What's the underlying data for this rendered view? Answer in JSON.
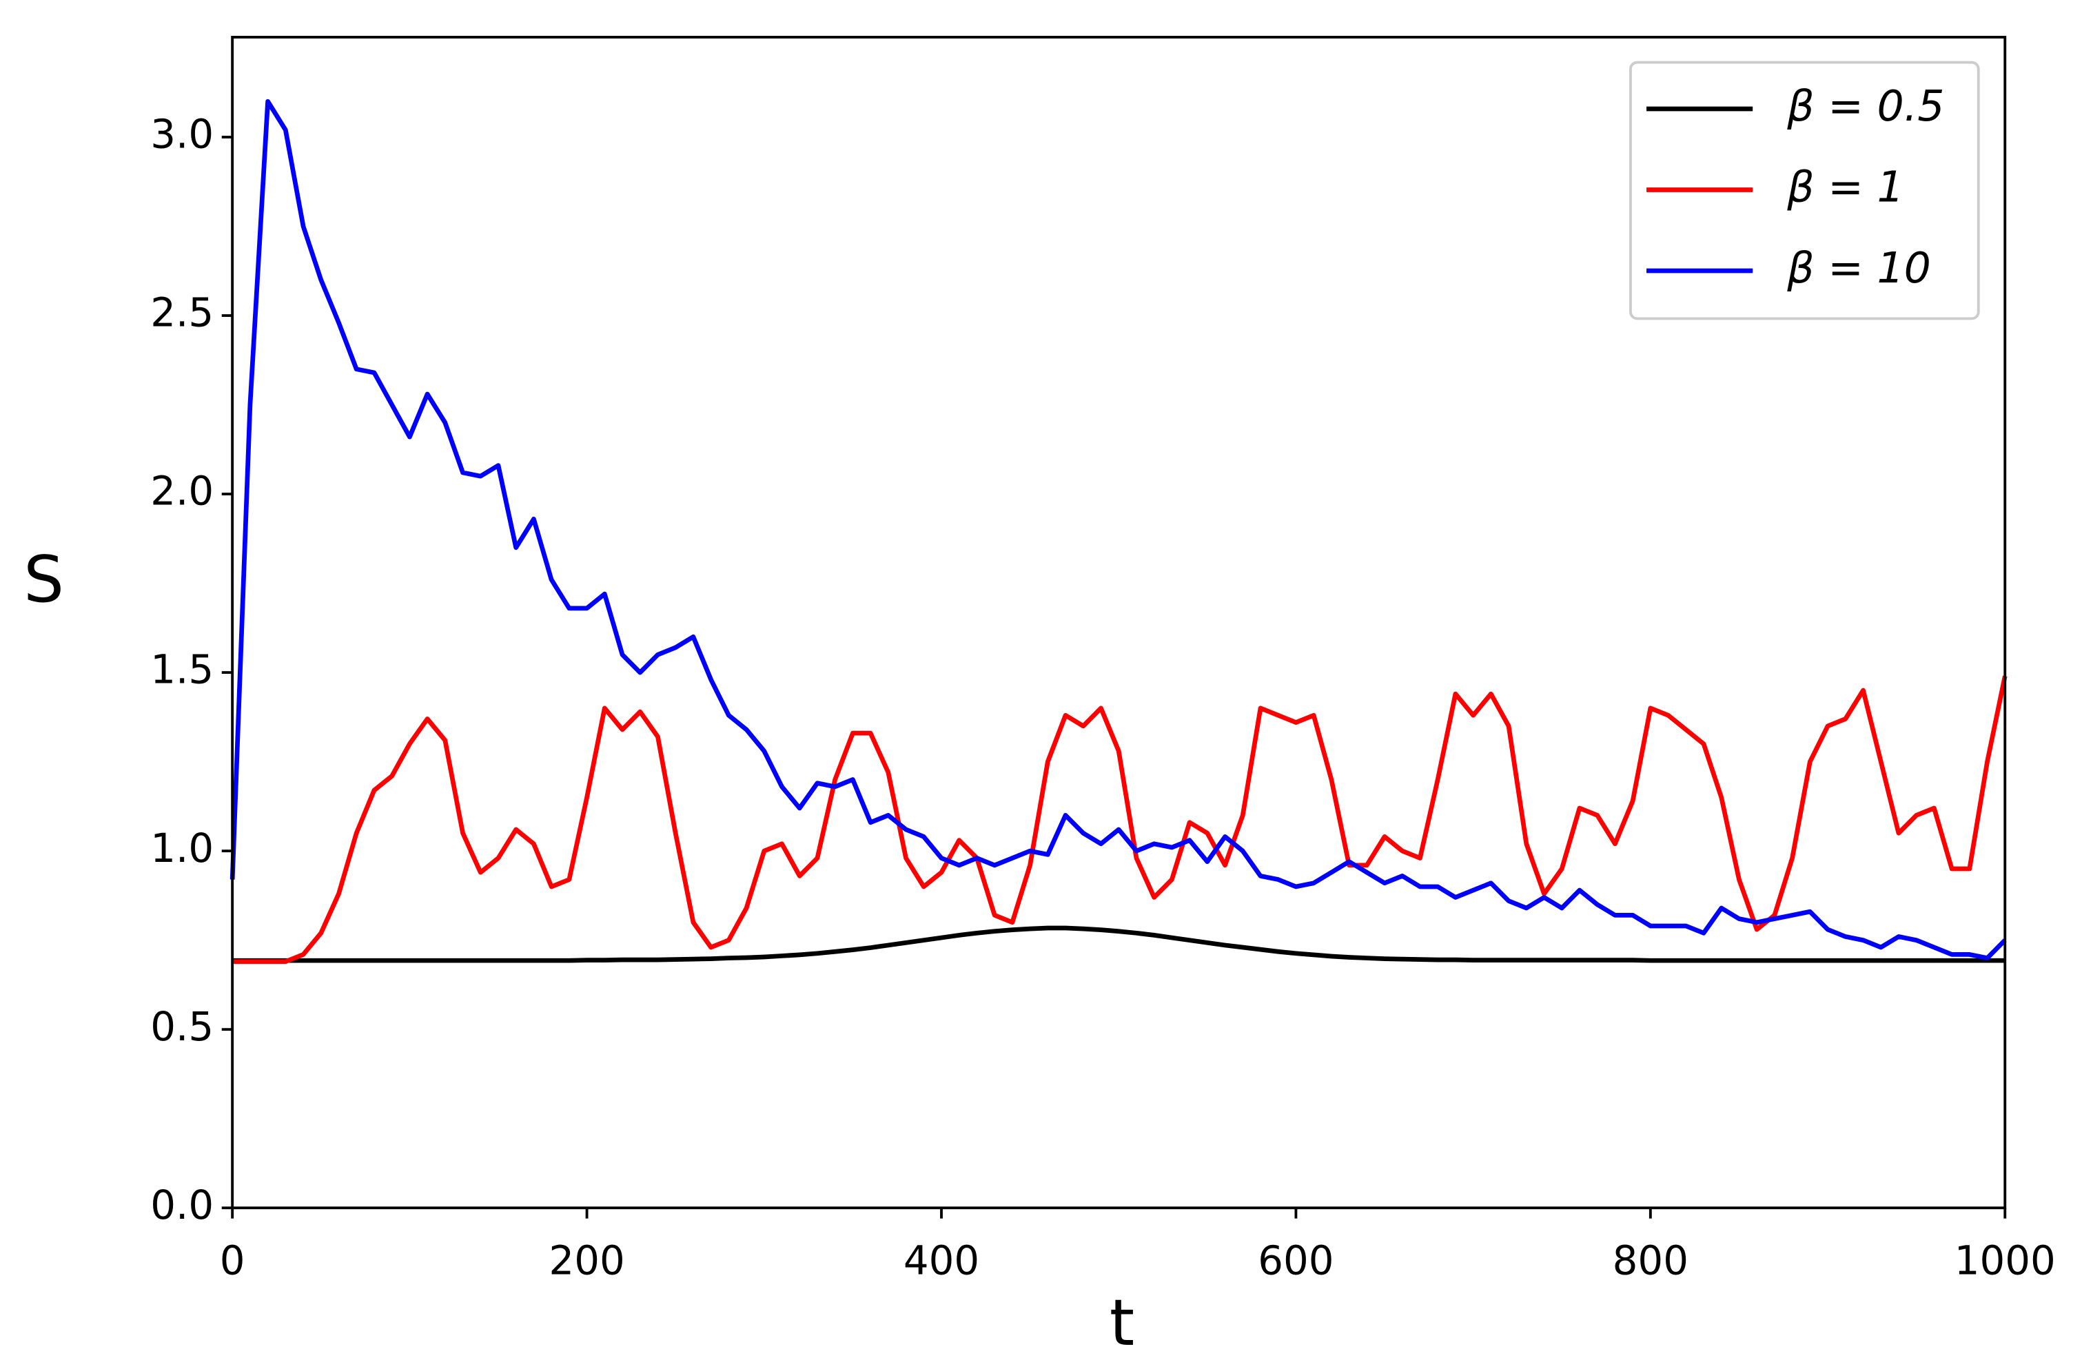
{
  "chart_data": {
    "type": "line",
    "xlabel": "t",
    "ylabel": "S",
    "x": [
      0,
      10,
      20,
      30,
      40,
      50,
      60,
      70,
      80,
      90,
      100,
      110,
      120,
      130,
      140,
      150,
      160,
      170,
      180,
      190,
      200,
      210,
      220,
      230,
      240,
      250,
      260,
      270,
      280,
      290,
      300,
      310,
      320,
      330,
      340,
      350,
      360,
      370,
      380,
      390,
      400,
      410,
      420,
      430,
      440,
      450,
      460,
      470,
      480,
      490,
      500,
      510,
      520,
      530,
      540,
      550,
      560,
      570,
      580,
      590,
      600,
      610,
      620,
      630,
      640,
      650,
      660,
      670,
      680,
      690,
      700,
      710,
      720,
      730,
      740,
      750,
      760,
      770,
      780,
      790,
      800,
      810,
      820,
      830,
      840,
      850,
      860,
      870,
      880,
      890,
      900,
      910,
      920,
      930,
      940,
      950,
      960,
      970,
      980,
      990,
      1000
    ],
    "series": [
      {
        "name": "β = 0.5",
        "color": "#000000",
        "values": [
          0.693,
          0.693,
          0.693,
          0.693,
          0.693,
          0.693,
          0.693,
          0.693,
          0.693,
          0.693,
          0.693,
          0.693,
          0.693,
          0.693,
          0.693,
          0.693,
          0.693,
          0.693,
          0.693,
          0.693,
          0.694,
          0.694,
          0.695,
          0.695,
          0.695,
          0.696,
          0.697,
          0.698,
          0.7,
          0.701,
          0.703,
          0.706,
          0.709,
          0.713,
          0.718,
          0.723,
          0.729,
          0.736,
          0.743,
          0.75,
          0.757,
          0.764,
          0.77,
          0.775,
          0.779,
          0.782,
          0.784,
          0.784,
          0.782,
          0.779,
          0.775,
          0.77,
          0.764,
          0.757,
          0.75,
          0.743,
          0.736,
          0.73,
          0.724,
          0.718,
          0.713,
          0.709,
          0.705,
          0.702,
          0.7,
          0.698,
          0.697,
          0.696,
          0.695,
          0.695,
          0.694,
          0.694,
          0.694,
          0.694,
          0.694,
          0.694,
          0.694,
          0.694,
          0.694,
          0.694,
          0.693,
          0.693,
          0.693,
          0.693,
          0.693,
          0.693,
          0.693,
          0.693,
          0.693,
          0.693,
          0.693,
          0.693,
          0.693,
          0.693,
          0.693,
          0.693,
          0.693,
          0.693,
          0.693,
          0.693,
          0.693
        ]
      },
      {
        "name": "β = 1",
        "color": "#ff0000",
        "values": [
          0.69,
          0.69,
          0.69,
          0.69,
          0.71,
          0.77,
          0.88,
          1.05,
          1.17,
          1.21,
          1.3,
          1.37,
          1.31,
          1.05,
          0.94,
          0.98,
          1.06,
          1.02,
          0.9,
          0.92,
          1.15,
          1.4,
          1.34,
          1.39,
          1.32,
          1.05,
          0.8,
          0.73,
          0.75,
          0.84,
          1.0,
          1.02,
          0.93,
          0.98,
          1.2,
          1.33,
          1.33,
          1.22,
          0.98,
          0.9,
          0.94,
          1.03,
          0.98,
          0.82,
          0.8,
          0.96,
          1.25,
          1.38,
          1.35,
          1.4,
          1.28,
          0.98,
          0.87,
          0.92,
          1.08,
          1.05,
          0.96,
          1.1,
          1.4,
          1.38,
          1.36,
          1.38,
          1.2,
          0.96,
          0.96,
          1.04,
          1.0,
          0.98,
          1.2,
          1.44,
          1.38,
          1.44,
          1.35,
          1.02,
          0.88,
          0.95,
          1.12,
          1.1,
          1.02,
          1.14,
          1.4,
          1.38,
          1.34,
          1.3,
          1.15,
          0.92,
          0.78,
          0.82,
          0.98,
          1.25,
          1.35,
          1.37,
          1.45,
          1.25,
          1.05,
          1.1,
          1.12,
          0.95,
          0.95,
          1.25,
          1.49
        ]
      },
      {
        "name": "β = 10",
        "color": "#0000ff",
        "values": [
          0.92,
          2.25,
          3.1,
          3.02,
          2.75,
          2.6,
          2.48,
          2.35,
          2.34,
          2.25,
          2.16,
          2.28,
          2.2,
          2.06,
          2.05,
          2.08,
          1.85,
          1.93,
          1.76,
          1.68,
          1.68,
          1.72,
          1.55,
          1.5,
          1.55,
          1.57,
          1.6,
          1.48,
          1.38,
          1.34,
          1.28,
          1.18,
          1.12,
          1.19,
          1.18,
          1.2,
          1.08,
          1.1,
          1.06,
          1.04,
          0.98,
          0.96,
          0.98,
          0.96,
          0.98,
          1.0,
          0.99,
          1.1,
          1.05,
          1.02,
          1.06,
          1.0,
          1.02,
          1.01,
          1.03,
          0.97,
          1.04,
          1.0,
          0.93,
          0.92,
          0.9,
          0.91,
          0.94,
          0.97,
          0.94,
          0.91,
          0.93,
          0.9,
          0.9,
          0.87,
          0.89,
          0.91,
          0.86,
          0.84,
          0.87,
          0.84,
          0.89,
          0.85,
          0.82,
          0.82,
          0.79,
          0.79,
          0.79,
          0.77,
          0.84,
          0.81,
          0.8,
          0.81,
          0.82,
          0.83,
          0.78,
          0.76,
          0.75,
          0.73,
          0.76,
          0.75,
          0.73,
          0.71,
          0.71,
          0.7,
          0.75
        ]
      }
    ],
    "xlim": [
      0,
      1000
    ],
    "ylim": [
      0,
      3.28
    ],
    "xticks": [
      0,
      200,
      400,
      600,
      800,
      1000
    ],
    "yticks": [
      {
        "value": 0,
        "label": "0.0"
      },
      0.5,
      {
        "value": 1,
        "label": "1.0"
      },
      1.5,
      {
        "value": 2,
        "label": "2.0"
      },
      2.5,
      {
        "value": 3,
        "label": "3.0"
      }
    ],
    "legend": "upper right"
  }
}
